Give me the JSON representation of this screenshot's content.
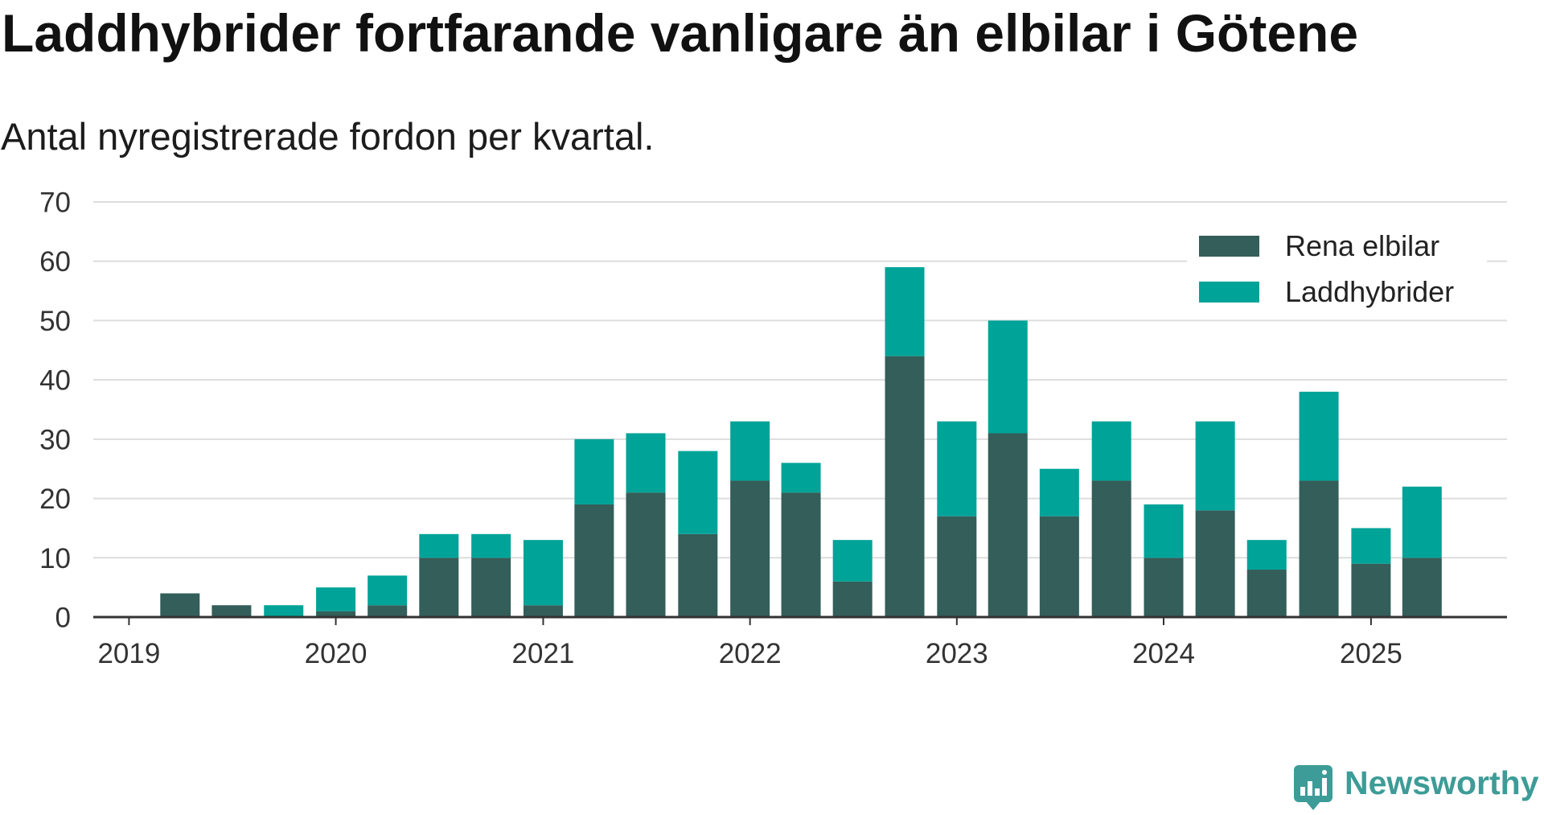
{
  "chart_data": {
    "type": "bar",
    "stacked": true,
    "title": "Laddhybrider fortfarande vanligare än elbilar i Götene",
    "subtitle": "Antal nyregistrerade fordon per kvartal.",
    "x": [
      "2019-01-01",
      "2019-04-01",
      "2019-07-01",
      "2019-10-01",
      "2020-01-01",
      "2020-04-01",
      "2020-07-01",
      "2020-10-01",
      "2021-01-01",
      "2021-04-01",
      "2021-07-01",
      "2021-10-01",
      "2022-01-01",
      "2022-04-01",
      "2022-07-01",
      "2022-10-01",
      "2023-01-01",
      "2023-04-01",
      "2023-07-01",
      "2023-10-01",
      "2024-01-01",
      "2024-04-01",
      "2024-07-01",
      "2024-10-01",
      "2025-01-01",
      "2025-04-01"
    ],
    "series": [
      {
        "name": "Rena elbilar",
        "color": "#335e59",
        "values": [
          0,
          4,
          2,
          0,
          1,
          2,
          10,
          10,
          2,
          19,
          21,
          14,
          23,
          21,
          6,
          44,
          17,
          31,
          17,
          23,
          10,
          18,
          8,
          23,
          9,
          10
        ]
      },
      {
        "name": "Laddhybrider",
        "color": "#00a398",
        "values": [
          0,
          0,
          0,
          2,
          4,
          5,
          4,
          4,
          11,
          11,
          10,
          14,
          10,
          5,
          7,
          15,
          16,
          19,
          8,
          10,
          9,
          15,
          5,
          15,
          6,
          12
        ]
      }
    ],
    "xticks": [
      "2019",
      "2020",
      "2021",
      "2022",
      "2023",
      "2024",
      "2025"
    ],
    "yticks": [
      0,
      10,
      20,
      30,
      40,
      50,
      60,
      70
    ],
    "ylim": [
      0,
      70
    ],
    "xlim": [
      "2018-10-30",
      "2025-08-29"
    ],
    "grid": "horizontal",
    "legend": "top-right"
  },
  "branding": {
    "logo_text": "Newsworthy",
    "logo_icon": "newsworthy-logo-icon",
    "color": "#3d9c97"
  }
}
